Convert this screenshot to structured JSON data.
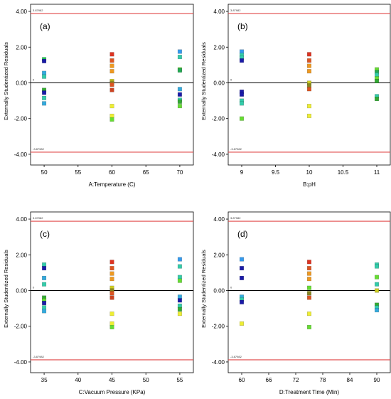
{
  "chart_data": [
    {
      "type": "scatter",
      "panel_label": "(a)",
      "xlabel": "A:Temperature (C)",
      "ylabel": "Externally Studentized Residuals",
      "xlim": [
        48,
        72
      ],
      "ylim": [
        -4.6,
        4.4
      ],
      "xticks": [
        50,
        55,
        60,
        65,
        70
      ],
      "xtick_labels": [
        "50",
        "55",
        "60",
        "65",
        "70"
      ],
      "yticks": [
        -4,
        -2,
        0,
        2,
        4
      ],
      "ytick_labels": [
        "-4.00",
        "-2.00",
        "0.00",
        "2.00",
        "4.00"
      ],
      "limit_lines": [
        3.87982,
        -3.87982
      ],
      "limit_labels": [
        "3.87982",
        "-3.87982"
      ],
      "zero_label": "0",
      "grid": false,
      "points": [
        {
          "x": 50,
          "y": 1.32,
          "color": "#22cc55"
        },
        {
          "x": 50,
          "y": 1.22,
          "color": "#1a1aa8"
        },
        {
          "x": 50,
          "y": 0.55,
          "color": "#33aadd"
        },
        {
          "x": 50,
          "y": 0.35,
          "color": "#33ccaa"
        },
        {
          "x": 50,
          "y": -0.4,
          "color": "#33aa33"
        },
        {
          "x": 50,
          "y": -0.55,
          "color": "#1a1aa8"
        },
        {
          "x": 50,
          "y": -0.85,
          "color": "#33ccaa"
        },
        {
          "x": 50,
          "y": -1.15,
          "color": "#33aadd"
        },
        {
          "x": 60,
          "y": 1.6,
          "color": "#dd3322"
        },
        {
          "x": 60,
          "y": 1.25,
          "color": "#dd5522"
        },
        {
          "x": 60,
          "y": 0.95,
          "color": "#ee9922"
        },
        {
          "x": 60,
          "y": 0.65,
          "color": "#ee9922"
        },
        {
          "x": 60,
          "y": 0.1,
          "color": "#cccc22"
        },
        {
          "x": 60,
          "y": 0.0,
          "color": "#888822"
        },
        {
          "x": 60,
          "y": -0.1,
          "color": "#dd5522"
        },
        {
          "x": 60,
          "y": -0.4,
          "color": "#cc4422"
        },
        {
          "x": 60,
          "y": -1.3,
          "color": "#eeee33"
        },
        {
          "x": 60,
          "y": -1.85,
          "color": "#eeee33"
        },
        {
          "x": 60,
          "y": -2.05,
          "color": "#66dd33"
        },
        {
          "x": 70,
          "y": 1.75,
          "color": "#3399ee"
        },
        {
          "x": 70,
          "y": 1.45,
          "color": "#33ccaa"
        },
        {
          "x": 70,
          "y": 0.75,
          "color": "#66dd33"
        },
        {
          "x": 70,
          "y": 0.7,
          "color": "#22aa55"
        },
        {
          "x": 70,
          "y": -0.35,
          "color": "#33aadd"
        },
        {
          "x": 70,
          "y": -0.65,
          "color": "#1a1aa8"
        },
        {
          "x": 70,
          "y": -0.95,
          "color": "#33ccaa"
        },
        {
          "x": 70,
          "y": -1.05,
          "color": "#33aa33"
        },
        {
          "x": 70,
          "y": -1.3,
          "color": "#66dd33"
        }
      ]
    },
    {
      "type": "scatter",
      "panel_label": "(b)",
      "xlabel": "B:pH",
      "ylabel": "Externally Studentized Residuals",
      "xlim": [
        8.8,
        11.2
      ],
      "ylim": [
        -4.6,
        4.4
      ],
      "xticks": [
        9,
        9.5,
        10,
        10.5,
        11
      ],
      "xtick_labels": [
        "9",
        "9.5",
        "10",
        "10.5",
        "11"
      ],
      "yticks": [
        -4,
        -2,
        0,
        2,
        4
      ],
      "ytick_labels": [
        "-4.00",
        "-2.00",
        "0.00",
        "2.00",
        "4.00"
      ],
      "limit_lines": [
        3.87982,
        -3.87982
      ],
      "limit_labels": [
        "3.87982",
        "-3.87982"
      ],
      "zero_label": "0",
      "grid": false,
      "points": [
        {
          "x": 9,
          "y": 1.75,
          "color": "#3399ee"
        },
        {
          "x": 9,
          "y": 1.55,
          "color": "#33ccaa"
        },
        {
          "x": 9,
          "y": 1.4,
          "color": "#33ccaa"
        },
        {
          "x": 9,
          "y": 1.25,
          "color": "#1a1aa8"
        },
        {
          "x": 9,
          "y": -0.5,
          "color": "#1a1aa8"
        },
        {
          "x": 9,
          "y": -0.65,
          "color": "#1a1aa8"
        },
        {
          "x": 9,
          "y": -1.0,
          "color": "#33ccaa"
        },
        {
          "x": 9,
          "y": -1.15,
          "color": "#33ccaa"
        },
        {
          "x": 9,
          "y": -2.0,
          "color": "#66dd33"
        },
        {
          "x": 10,
          "y": 1.6,
          "color": "#dd3322"
        },
        {
          "x": 10,
          "y": 1.25,
          "color": "#dd5522"
        },
        {
          "x": 10,
          "y": 0.95,
          "color": "#ee9922"
        },
        {
          "x": 10,
          "y": 0.65,
          "color": "#ee9922"
        },
        {
          "x": 10,
          "y": 0.0,
          "color": "#cccc22"
        },
        {
          "x": 10,
          "y": -0.15,
          "color": "#888822"
        },
        {
          "x": 10,
          "y": -0.35,
          "color": "#dd5522"
        },
        {
          "x": 10,
          "y": -1.3,
          "color": "#eeee33"
        },
        {
          "x": 10,
          "y": -1.85,
          "color": "#eeee33"
        },
        {
          "x": 11,
          "y": 0.75,
          "color": "#66dd33"
        },
        {
          "x": 11,
          "y": 0.6,
          "color": "#22aa55"
        },
        {
          "x": 11,
          "y": 0.45,
          "color": "#33ccaa"
        },
        {
          "x": 11,
          "y": 0.25,
          "color": "#66dd33"
        },
        {
          "x": 11,
          "y": 0.1,
          "color": "#33aa33"
        },
        {
          "x": 11,
          "y": -0.75,
          "color": "#33ccaa"
        },
        {
          "x": 11,
          "y": -0.9,
          "color": "#33aa33"
        }
      ]
    },
    {
      "type": "scatter",
      "panel_label": "(c)",
      "xlabel": "C:Vacuum Pressure (KPa)",
      "ylabel": "Externally Studentized Residuals",
      "xlim": [
        33,
        57
      ],
      "ylim": [
        -4.6,
        4.4
      ],
      "xticks": [
        35,
        40,
        45,
        50,
        55
      ],
      "xtick_labels": [
        "35",
        "40",
        "45",
        "50",
        "55"
      ],
      "yticks": [
        -4,
        -2,
        0,
        2,
        4
      ],
      "ytick_labels": [
        "-4.00",
        "-2.00",
        "0.00",
        "2.00",
        "4.00"
      ],
      "limit_lines": [
        3.87982,
        -3.87982
      ],
      "limit_labels": [
        "3.87982",
        "-3.87982"
      ],
      "zero_label": "0",
      "grid": false,
      "points": [
        {
          "x": 35,
          "y": 1.45,
          "color": "#33ccaa"
        },
        {
          "x": 35,
          "y": 1.25,
          "color": "#1a1aa8"
        },
        {
          "x": 35,
          "y": 0.7,
          "color": "#33aadd"
        },
        {
          "x": 35,
          "y": 0.35,
          "color": "#33ccaa"
        },
        {
          "x": 35,
          "y": -0.4,
          "color": "#33aa33"
        },
        {
          "x": 35,
          "y": -0.55,
          "color": "#66dd33"
        },
        {
          "x": 35,
          "y": -0.7,
          "color": "#1a1aa8"
        },
        {
          "x": 35,
          "y": -0.95,
          "color": "#33ccaa"
        },
        {
          "x": 35,
          "y": -1.15,
          "color": "#33aadd"
        },
        {
          "x": 45,
          "y": 1.6,
          "color": "#dd3322"
        },
        {
          "x": 45,
          "y": 1.25,
          "color": "#dd5522"
        },
        {
          "x": 45,
          "y": 0.95,
          "color": "#ee9922"
        },
        {
          "x": 45,
          "y": 0.65,
          "color": "#ee9922"
        },
        {
          "x": 45,
          "y": 0.15,
          "color": "#cccc22"
        },
        {
          "x": 45,
          "y": 0.0,
          "color": "#888822"
        },
        {
          "x": 45,
          "y": -0.15,
          "color": "#dd5522"
        },
        {
          "x": 45,
          "y": -0.4,
          "color": "#cc4422"
        },
        {
          "x": 45,
          "y": -1.3,
          "color": "#eeee33"
        },
        {
          "x": 45,
          "y": -1.85,
          "color": "#eeee33"
        },
        {
          "x": 45,
          "y": -2.05,
          "color": "#66dd33"
        },
        {
          "x": 55,
          "y": 1.75,
          "color": "#3399ee"
        },
        {
          "x": 55,
          "y": 1.35,
          "color": "#33ccaa"
        },
        {
          "x": 55,
          "y": 0.75,
          "color": "#33ccaa"
        },
        {
          "x": 55,
          "y": 0.55,
          "color": "#66dd33"
        },
        {
          "x": 55,
          "y": -0.35,
          "color": "#33aadd"
        },
        {
          "x": 55,
          "y": -0.55,
          "color": "#1a1aa8"
        },
        {
          "x": 55,
          "y": -0.85,
          "color": "#33ccaa"
        },
        {
          "x": 55,
          "y": -1.05,
          "color": "#33aa33"
        },
        {
          "x": 55,
          "y": -1.3,
          "color": "#eeee33"
        }
      ]
    },
    {
      "type": "scatter",
      "panel_label": "(d)",
      "xlabel": "D:Treatment Time (Min)",
      "ylabel": "Externally Studentized Residuals",
      "xlim": [
        57,
        93
      ],
      "ylim": [
        -4.6,
        4.4
      ],
      "xticks": [
        60,
        66,
        72,
        78,
        84,
        90
      ],
      "xtick_labels": [
        "60",
        "66",
        "72",
        "78",
        "84",
        "90"
      ],
      "yticks": [
        -4,
        -2,
        0,
        2,
        4
      ],
      "ytick_labels": [
        "-4.00",
        "-2.00",
        "0.00",
        "2.00",
        "4.00"
      ],
      "limit_lines": [
        3.87982,
        -3.87982
      ],
      "limit_labels": [
        "3.87982",
        "-3.87982"
      ],
      "zero_label": "0",
      "grid": false,
      "points": [
        {
          "x": 60,
          "y": 1.75,
          "color": "#3399ee"
        },
        {
          "x": 60,
          "y": 1.25,
          "color": "#1a1aa8"
        },
        {
          "x": 60,
          "y": 0.7,
          "color": "#1a1aa8"
        },
        {
          "x": 60,
          "y": -0.35,
          "color": "#33aadd"
        },
        {
          "x": 60,
          "y": -0.5,
          "color": "#33ccaa"
        },
        {
          "x": 60,
          "y": -0.65,
          "color": "#1a1aa8"
        },
        {
          "x": 60,
          "y": -1.85,
          "color": "#eeee33"
        },
        {
          "x": 75,
          "y": 1.6,
          "color": "#dd3322"
        },
        {
          "x": 75,
          "y": 1.25,
          "color": "#dd5522"
        },
        {
          "x": 75,
          "y": 0.95,
          "color": "#ee9922"
        },
        {
          "x": 75,
          "y": 0.65,
          "color": "#ee9922"
        },
        {
          "x": 75,
          "y": 0.15,
          "color": "#66dd33"
        },
        {
          "x": 75,
          "y": -0.15,
          "color": "#888822"
        },
        {
          "x": 75,
          "y": -0.4,
          "color": "#dd5522"
        },
        {
          "x": 75,
          "y": -1.3,
          "color": "#eeee33"
        },
        {
          "x": 75,
          "y": -2.05,
          "color": "#66dd33"
        },
        {
          "x": 90,
          "y": 1.45,
          "color": "#33ccaa"
        },
        {
          "x": 90,
          "y": 1.35,
          "color": "#33ccaa"
        },
        {
          "x": 90,
          "y": 0.75,
          "color": "#66dd33"
        },
        {
          "x": 90,
          "y": 0.35,
          "color": "#33ccaa"
        },
        {
          "x": 90,
          "y": 0.0,
          "color": "#cccc22"
        },
        {
          "x": 90,
          "y": -0.8,
          "color": "#33aa33"
        },
        {
          "x": 90,
          "y": -0.95,
          "color": "#33ccaa"
        },
        {
          "x": 90,
          "y": -1.1,
          "color": "#33aadd"
        }
      ]
    }
  ]
}
